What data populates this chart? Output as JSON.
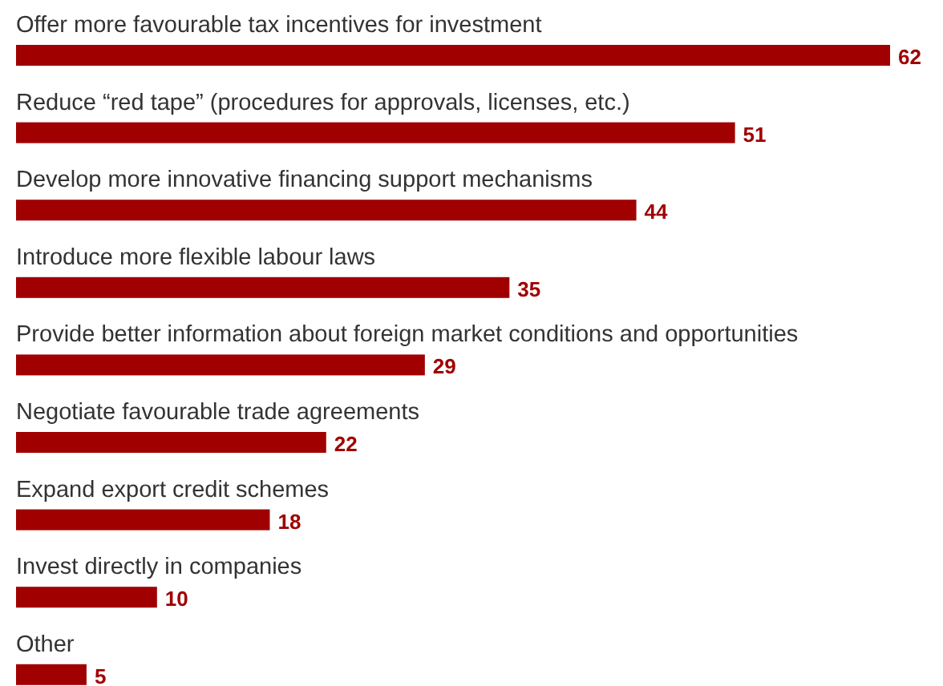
{
  "chart_data": {
    "type": "bar",
    "orientation": "horizontal",
    "data_labels": true,
    "color": "#a00000",
    "categories": [
      "Offer more favourable tax incentives for investment",
      "Reduce “red tape” (procedures for approvals, licenses, etc.)",
      "Develop more innovative financing support mechanisms",
      "Introduce more flexible labour laws",
      "Provide better information about foreign market conditions and opportunities",
      "Negotiate favourable trade agreements",
      "Expand export credit schemes",
      "Invest directly in companies",
      "Other"
    ],
    "values": [
      62,
      51,
      44,
      35,
      29,
      22,
      18,
      10,
      5
    ]
  }
}
